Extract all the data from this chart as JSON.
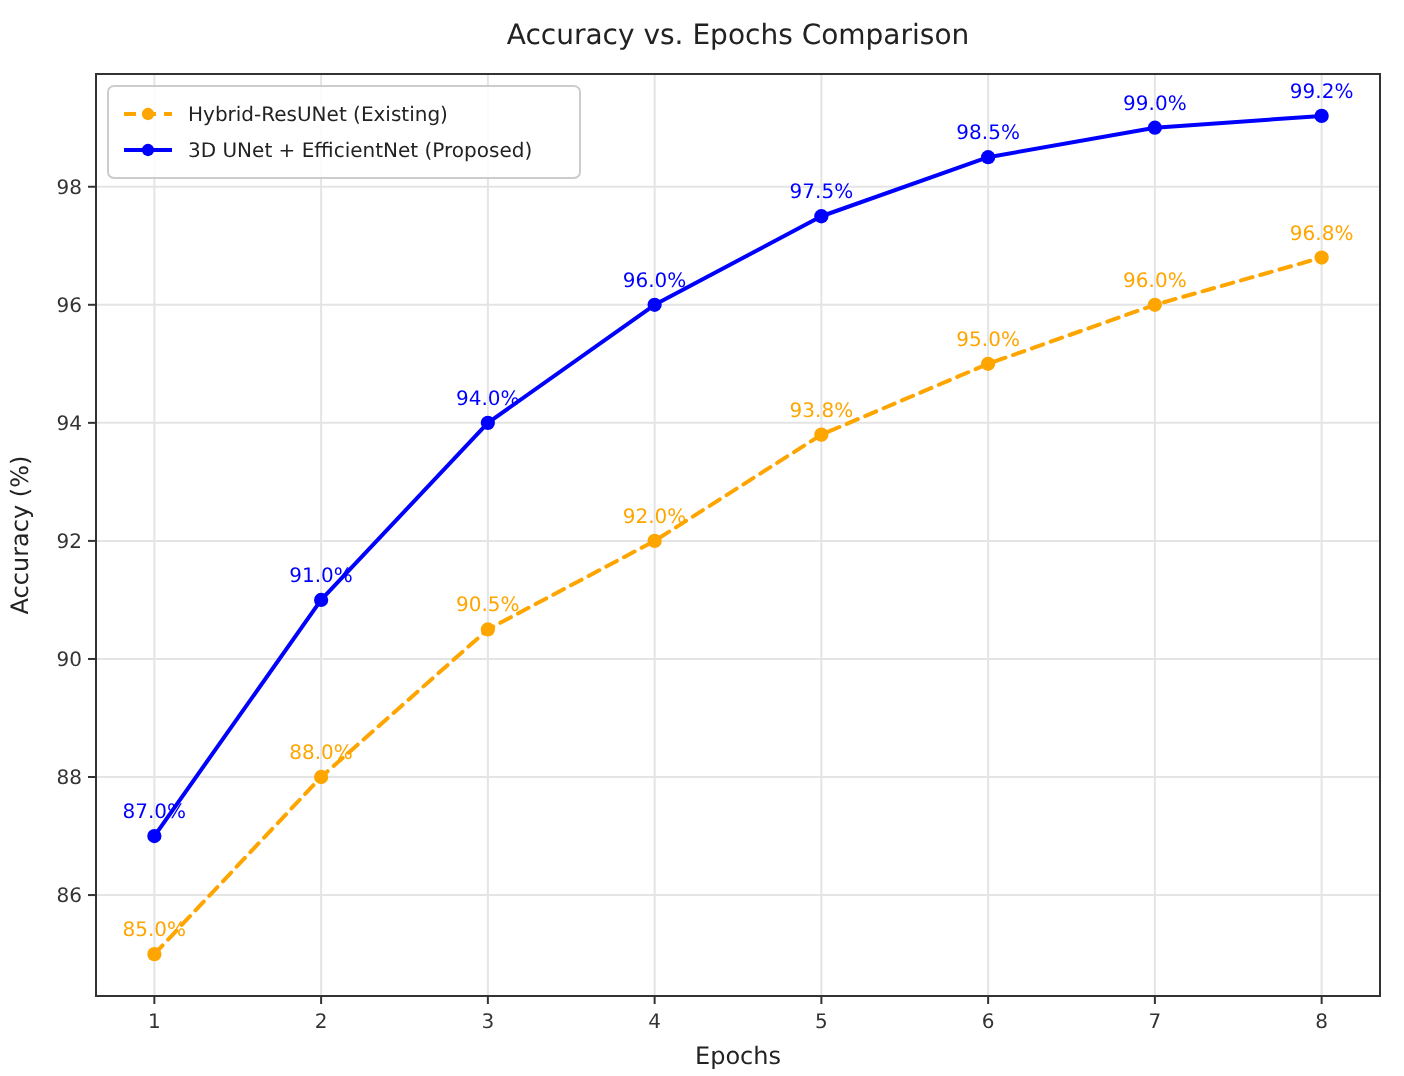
{
  "chart_data": {
    "type": "line",
    "title": "Accuracy vs. Epochs Comparison",
    "xlabel": "Epochs",
    "ylabel": "Accuracy (%)",
    "x": [
      1,
      2,
      3,
      4,
      5,
      6,
      7,
      8
    ],
    "xlim": [
      0.65,
      8.35
    ],
    "xticks": [
      1,
      2,
      3,
      4,
      5,
      6,
      7,
      8
    ],
    "ylim": [
      84.29,
      99.91
    ],
    "yticks": [
      86,
      88,
      90,
      92,
      94,
      96,
      98
    ],
    "grid": true,
    "legend": "top left",
    "marker": "circle",
    "series": [
      {
        "name": "Hybrid-ResUNet (Existing)",
        "color": "#ffa500",
        "line_style": "dashed",
        "values": [
          85.0,
          88.0,
          90.5,
          92.0,
          93.8,
          95.0,
          96.0,
          96.8
        ],
        "value_labels": [
          "85.0%",
          "88.0%",
          "90.5%",
          "92.0%",
          "93.8%",
          "95.0%",
          "96.0%",
          "96.8%"
        ]
      },
      {
        "name": "3D UNet + EfficientNet (Proposed)",
        "color": "#0000ff",
        "line_style": "solid",
        "values": [
          87.0,
          91.0,
          94.0,
          96.0,
          97.5,
          98.5,
          99.0,
          99.2
        ],
        "value_labels": [
          "87.0%",
          "91.0%",
          "94.0%",
          "96.0%",
          "97.5%",
          "98.5%",
          "99.0%",
          "99.2%"
        ]
      }
    ]
  }
}
